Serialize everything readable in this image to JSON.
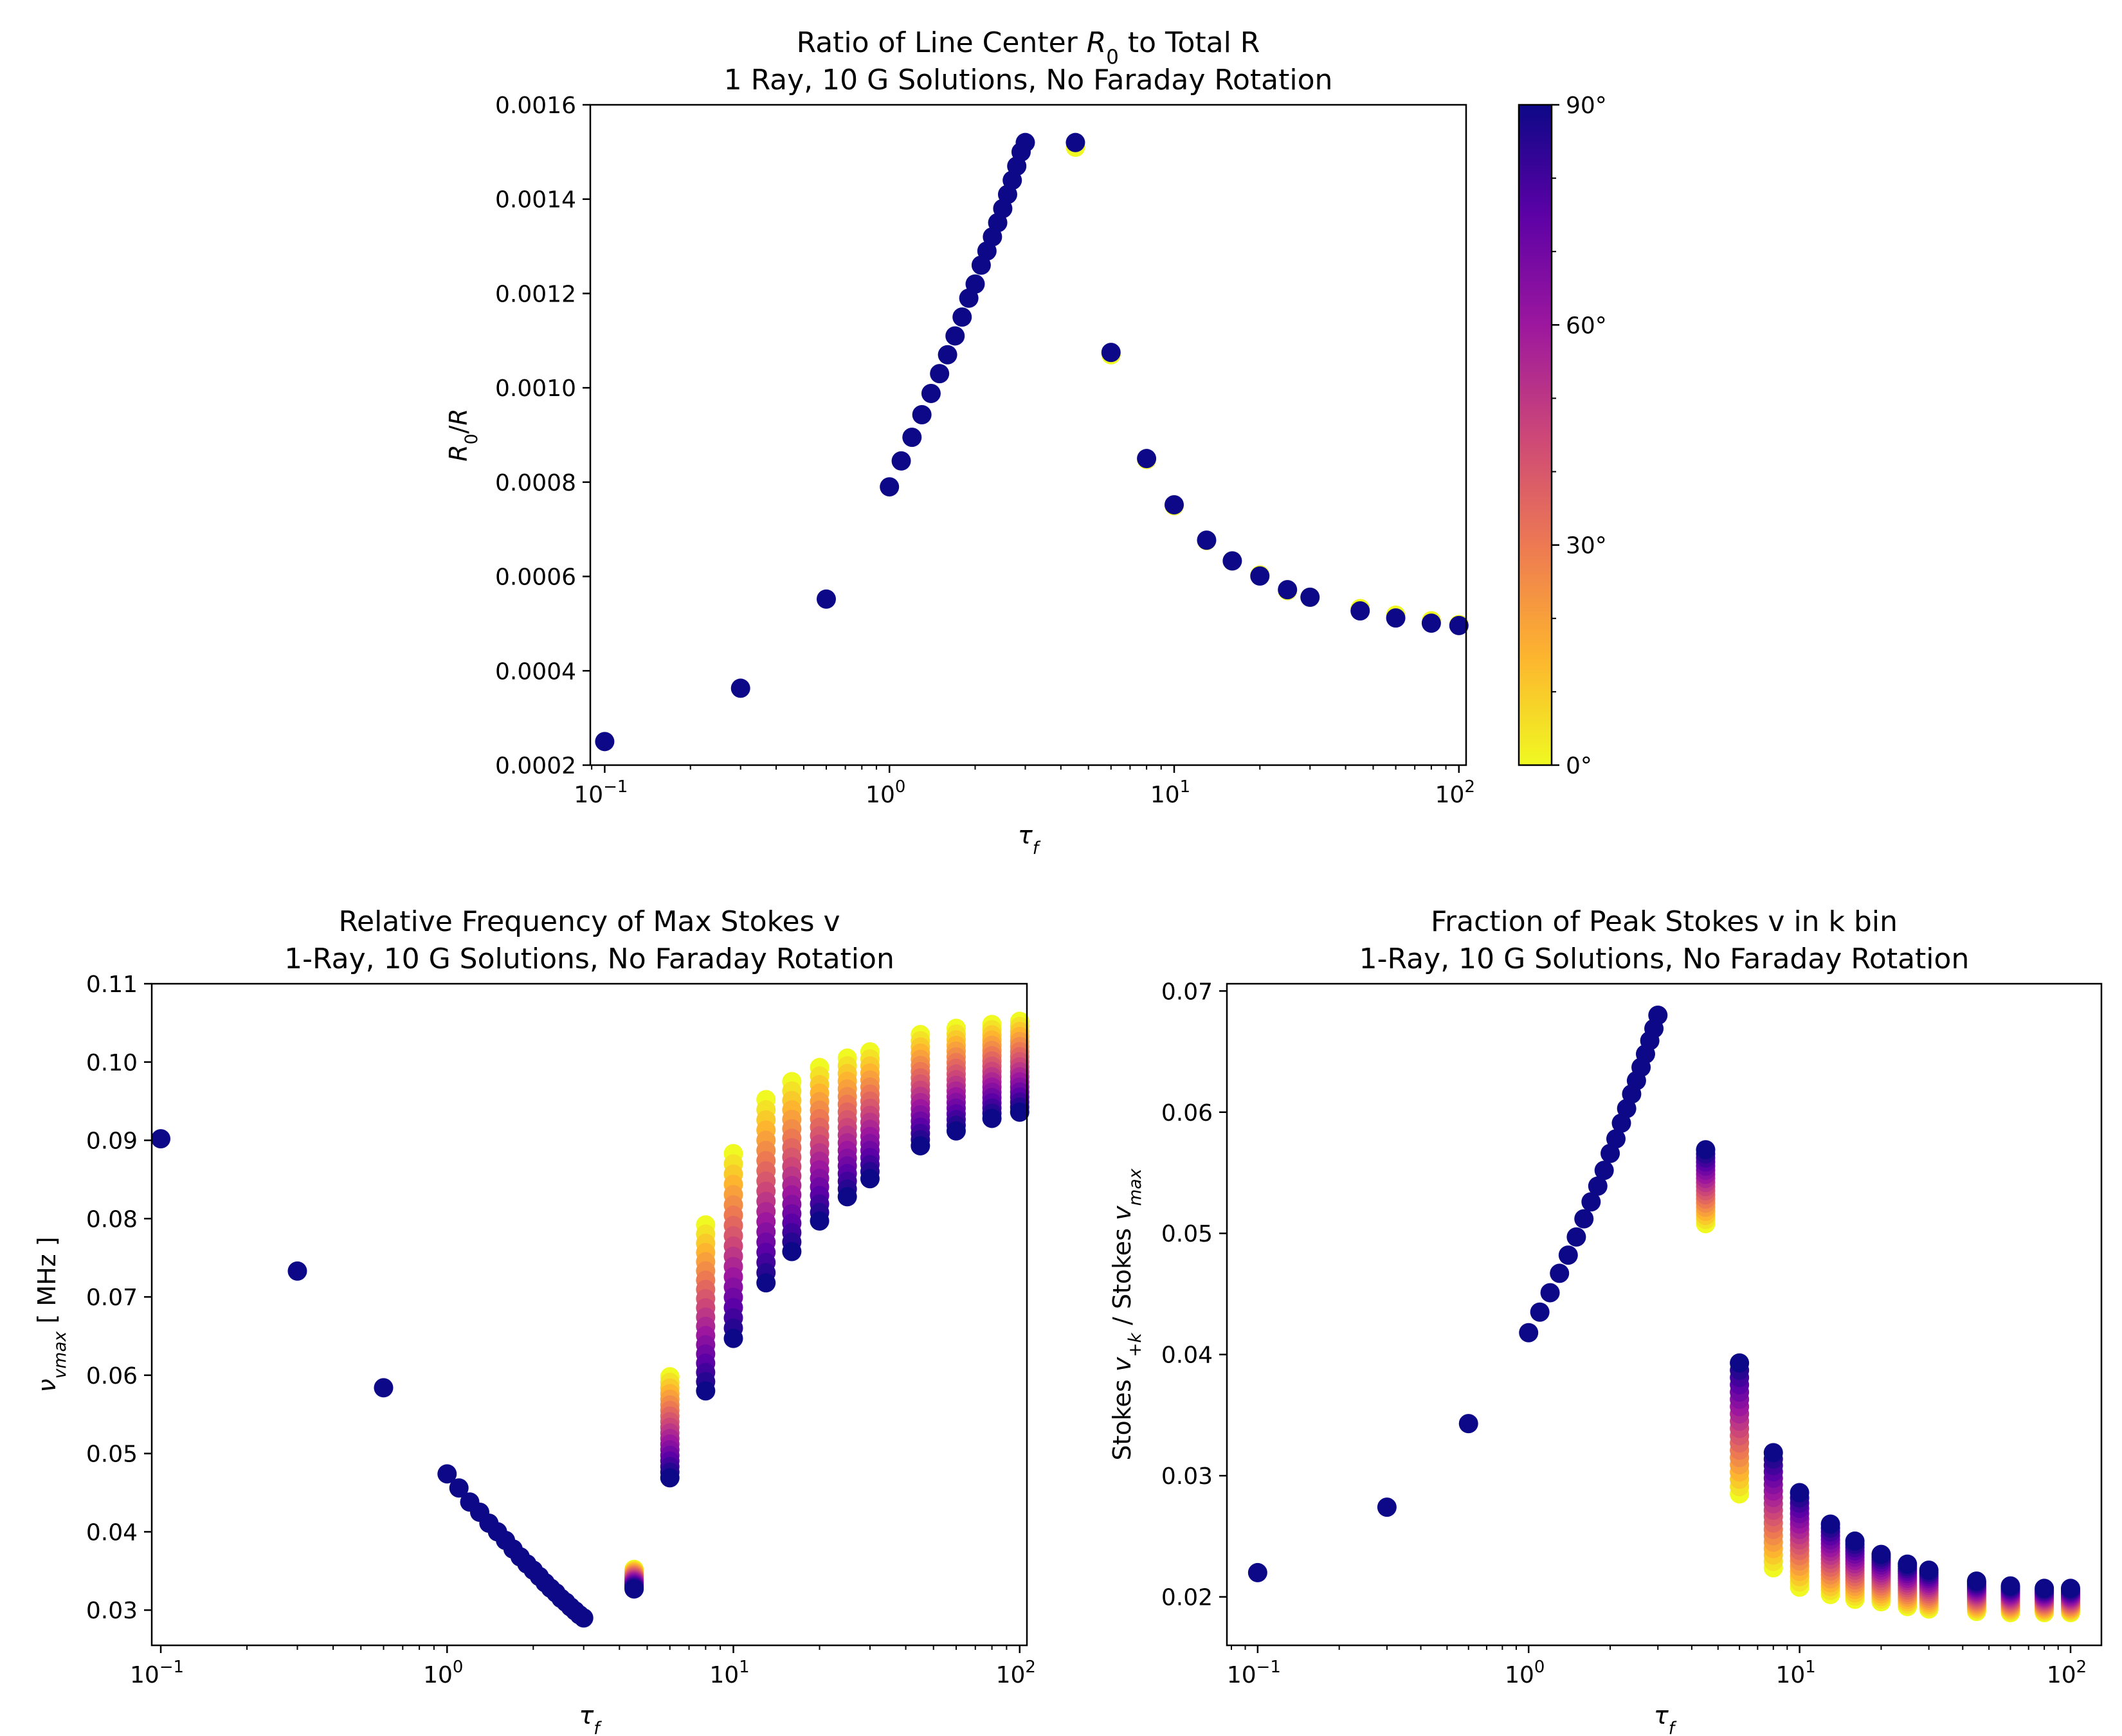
{
  "colors": {
    "dot_default": "#0d0887",
    "colormap_stops": [
      "#f0f921",
      "#fdb42f",
      "#ed7953",
      "#cc4778",
      "#9c179e",
      "#5c01a6",
      "#0d0887"
    ],
    "axis": "#000000"
  },
  "colorbar": {
    "ticks": [
      {
        "value": 0,
        "label": "0°"
      },
      {
        "value": 30,
        "label": "30°"
      },
      {
        "value": 60,
        "label": "60°"
      },
      {
        "value": 90,
        "label": "90°"
      }
    ],
    "minor_step": 10
  },
  "chart_data": [
    {
      "id": "top",
      "type": "scatter",
      "title_parts": [
        {
          "t": "Ratio of Line Center "
        },
        {
          "t": "R",
          "it": true
        },
        {
          "t": "0",
          "sub": true
        },
        {
          "t": " to Total R"
        }
      ],
      "subtitle": "1 Ray, 10 G Solutions, No Faraday Rotation",
      "xlabel_parts": [
        {
          "t": "τ",
          "it": true
        },
        {
          "t": "f",
          "sub": true,
          "it": true
        }
      ],
      "ylabel_parts": [
        {
          "t": "R",
          "it": true
        },
        {
          "t": "0",
          "sub": true
        },
        {
          "t": "/"
        },
        {
          "t": "R",
          "it": true
        }
      ],
      "xscale": "log",
      "xlim": [
        0.089,
        106
      ],
      "ylim": [
        0.0002,
        0.0016
      ],
      "yticks": [
        {
          "v": 0.0002,
          "label": "0.0002"
        },
        {
          "v": 0.0004,
          "label": "0.0004"
        },
        {
          "v": 0.0006,
          "label": "0.0006"
        },
        {
          "v": 0.0008,
          "label": "0.0008"
        },
        {
          "v": 0.001,
          "label": "0.0010"
        },
        {
          "v": 0.0012,
          "label": "0.0012"
        },
        {
          "v": 0.0014,
          "label": "0.0014"
        },
        {
          "v": 0.0016,
          "label": "0.0016"
        }
      ],
      "xticks": [
        {
          "v": 0.1,
          "base": "10",
          "exp": "−1"
        },
        {
          "v": 1,
          "base": "10",
          "exp": "0"
        },
        {
          "v": 10,
          "base": "10",
          "exp": "1"
        },
        {
          "v": 100,
          "base": "10",
          "exp": "2"
        }
      ],
      "colorbar_label_angle_range": [
        0,
        90
      ],
      "series": [
        {
          "name": "angle 0°",
          "angle": 0,
          "x": [
            4.5,
            6,
            8,
            10,
            13,
            16,
            20,
            25,
            30,
            45,
            60,
            80,
            100
          ],
          "y": [
            0.00151,
            0.00107,
            0.000848,
            0.00075,
            0.000676,
            0.000633,
            0.000603,
            0.00057,
            0.000556,
            0.000532,
            0.000518,
            0.000506,
            0.000498
          ]
        },
        {
          "name": "angle 90°",
          "angle": 90,
          "x": [
            0.1,
            0.3,
            0.6,
            1.0,
            1.1,
            1.2,
            1.3,
            1.4,
            1.5,
            1.6,
            1.7,
            1.8,
            1.9,
            2.0,
            2.1,
            2.2,
            2.3,
            2.4,
            2.5,
            2.6,
            2.7,
            2.8,
            2.9,
            3.0,
            4.5,
            6,
            8,
            10,
            13,
            16,
            20,
            25,
            30,
            45,
            60,
            80,
            100
          ],
          "y": [
            0.00025,
            0.000363,
            0.000552,
            0.00079,
            0.000845,
            0.000895,
            0.000943,
            0.000988,
            0.00103,
            0.00107,
            0.00111,
            0.00115,
            0.00119,
            0.00122,
            0.00126,
            0.00129,
            0.00132,
            0.00135,
            0.00138,
            0.00141,
            0.00144,
            0.00147,
            0.0015,
            0.00152,
            0.00152,
            0.001075,
            0.00085,
            0.000752,
            0.000677,
            0.000633,
            0.000601,
            0.000572,
            0.000556,
            0.000527,
            0.000512,
            0.000501,
            0.000496
          ]
        }
      ]
    },
    {
      "id": "bottom_left",
      "type": "scatter",
      "title_parts": [
        {
          "t": "Relative Frequency of Max Stokes v"
        }
      ],
      "subtitle": "1-Ray, 10 G Solutions, No Faraday Rotation",
      "xlabel_parts": [
        {
          "t": "τ",
          "it": true
        },
        {
          "t": "f",
          "sub": true,
          "it": true
        }
      ],
      "ylabel_parts": [
        {
          "t": "ν",
          "it": true
        },
        {
          "t": "vmax",
          "sub": true,
          "it": true
        },
        {
          "t": " [ MHz ]"
        }
      ],
      "xscale": "log",
      "xlim": [
        0.093,
        106
      ],
      "ylim": [
        0.0255,
        0.11
      ],
      "yticks": [
        {
          "v": 0.03,
          "label": "0.03"
        },
        {
          "v": 0.04,
          "label": "0.04"
        },
        {
          "v": 0.05,
          "label": "0.05"
        },
        {
          "v": 0.06,
          "label": "0.06"
        },
        {
          "v": 0.07,
          "label": "0.07"
        },
        {
          "v": 0.08,
          "label": "0.08"
        },
        {
          "v": 0.09,
          "label": "0.09"
        },
        {
          "v": 0.1,
          "label": "0.10"
        },
        {
          "v": 0.11,
          "label": "0.11"
        }
      ],
      "xticks": [
        {
          "v": 0.1,
          "base": "10",
          "exp": "−1"
        },
        {
          "v": 1,
          "base": "10",
          "exp": "0"
        },
        {
          "v": 10,
          "base": "10",
          "exp": "1"
        },
        {
          "v": 100,
          "base": "10",
          "exp": "2"
        }
      ],
      "single_points": {
        "x": [
          0.1,
          0.3,
          0.6,
          1.0,
          1.1,
          1.2,
          1.3,
          1.4,
          1.5,
          1.6,
          1.7,
          1.8,
          1.9,
          2.0,
          2.1,
          2.2,
          2.3,
          2.4,
          2.5,
          2.6,
          2.7,
          2.8,
          2.9,
          3.0
        ],
        "y": [
          0.0902,
          0.0733,
          0.0584,
          0.0474,
          0.0456,
          0.0438,
          0.0425,
          0.0411,
          0.04,
          0.0389,
          0.0378,
          0.0368,
          0.0359,
          0.0351,
          0.0343,
          0.0335,
          0.0328,
          0.0322,
          0.0315,
          0.031,
          0.0304,
          0.0299,
          0.0294,
          0.029
        ],
        "angle": 90
      },
      "angle_columns": {
        "angles_from": 0,
        "angles_to": 90,
        "angle_step": 5,
        "x": [
          4.5,
          6,
          8,
          10,
          13,
          16,
          20,
          25,
          30,
          45,
          60,
          80,
          100
        ],
        "y_at_0deg": [
          0.0352,
          0.0598,
          0.0792,
          0.0883,
          0.0952,
          0.0975,
          0.0993,
          0.1005,
          0.1013,
          0.1035,
          0.1043,
          0.1048,
          0.1052
        ],
        "y_at_90deg": [
          0.0327,
          0.0469,
          0.058,
          0.0647,
          0.0718,
          0.0758,
          0.0797,
          0.0828,
          0.0851,
          0.0893,
          0.0912,
          0.0928,
          0.0936
        ]
      }
    },
    {
      "id": "bottom_right",
      "type": "scatter",
      "title_parts": [
        {
          "t": "Fraction of Peak Stokes v in k bin"
        }
      ],
      "subtitle": "1-Ray, 10 G Solutions, No Faraday Rotation",
      "xlabel_parts": [
        {
          "t": "τ",
          "it": true
        },
        {
          "t": "f",
          "sub": true,
          "it": true
        }
      ],
      "ylabel_parts": [
        {
          "t": "Stokes "
        },
        {
          "t": "v",
          "it": true
        },
        {
          "t": "+k",
          "sub": true,
          "it": true
        },
        {
          "t": " / Stokes "
        },
        {
          "t": "v",
          "it": true
        },
        {
          "t": "max",
          "sub": true,
          "it": true
        }
      ],
      "xscale": "log",
      "xlim": [
        0.077,
        130
      ],
      "ylim": [
        0.016,
        0.0706
      ],
      "yticks": [
        {
          "v": 0.02,
          "label": "0.02"
        },
        {
          "v": 0.03,
          "label": "0.03"
        },
        {
          "v": 0.04,
          "label": "0.04"
        },
        {
          "v": 0.05,
          "label": "0.05"
        },
        {
          "v": 0.06,
          "label": "0.06"
        },
        {
          "v": 0.07,
          "label": "0.07"
        }
      ],
      "xticks": [
        {
          "v": 0.1,
          "base": "10",
          "exp": "−1"
        },
        {
          "v": 1,
          "base": "10",
          "exp": "0"
        },
        {
          "v": 10,
          "base": "10",
          "exp": "1"
        },
        {
          "v": 100,
          "base": "10",
          "exp": "2"
        }
      ],
      "single_points": {
        "x": [
          0.1,
          0.3,
          0.6,
          1.0,
          1.1,
          1.2,
          1.3,
          1.4,
          1.5,
          1.6,
          1.7,
          1.8,
          1.9,
          2.0,
          2.1,
          2.2,
          2.3,
          2.4,
          2.5,
          2.6,
          2.7,
          2.8,
          2.9,
          3.0
        ],
        "y": [
          0.022,
          0.0274,
          0.0343,
          0.0418,
          0.0435,
          0.0451,
          0.0467,
          0.0482,
          0.0497,
          0.0512,
          0.0526,
          0.0539,
          0.0552,
          0.0566,
          0.0578,
          0.0591,
          0.0603,
          0.0615,
          0.0626,
          0.0637,
          0.0648,
          0.0659,
          0.0669,
          0.068
        ],
        "angle": 90
      },
      "angle_columns": {
        "angles_from": 0,
        "angles_to": 90,
        "angle_step": 5,
        "x": [
          4.5,
          6,
          8,
          10,
          13,
          16,
          20,
          25,
          30,
          45,
          60,
          80,
          100
        ],
        "y_at_0deg": [
          0.0508,
          0.0285,
          0.0224,
          0.0208,
          0.0202,
          0.0198,
          0.0196,
          0.0192,
          0.019,
          0.0188,
          0.0187,
          0.0187,
          0.0187
        ],
        "y_at_90deg": [
          0.0569,
          0.0393,
          0.0319,
          0.0286,
          0.026,
          0.0246,
          0.0235,
          0.0227,
          0.0222,
          0.0213,
          0.0209,
          0.0207,
          0.0207
        ]
      }
    }
  ]
}
